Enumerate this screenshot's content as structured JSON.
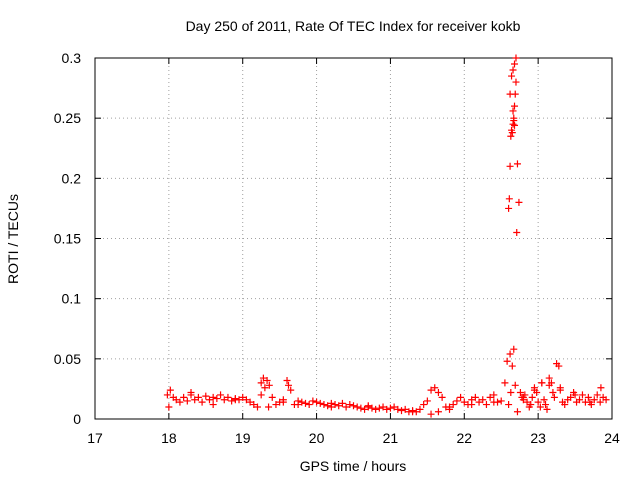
{
  "chart_data": {
    "type": "scatter",
    "title": "Day 250 of 2011, Rate Of TEC Index for receiver kokb",
    "xlabel": "GPS time / hours",
    "ylabel": "ROTI / TECUs",
    "xlim": [
      17,
      24
    ],
    "ylim": [
      0,
      0.3
    ],
    "xticks": [
      17,
      18,
      19,
      20,
      21,
      22,
      23,
      24
    ],
    "yticks": [
      0,
      0.05,
      0.1,
      0.15,
      0.2,
      0.25,
      0.3
    ],
    "xtick_labels": [
      "17",
      "18",
      "19",
      "20",
      "21",
      "22",
      "23",
      "24"
    ],
    "ytick_labels": [
      "0",
      "0.05",
      "0.1",
      "0.15",
      "0.2",
      "0.25",
      "0.3"
    ],
    "grid": true,
    "marker": "+",
    "series": [
      {
        "name": "ROTI",
        "color": "#ff0000",
        "x": [
          17.98,
          18.02,
          18.06,
          18.1,
          18.15,
          18.2,
          18.25,
          18.3,
          18.35,
          18.4,
          18.45,
          18.5,
          18.55,
          18.6,
          18.65,
          18.7,
          18.75,
          18.8,
          18.85,
          18.9,
          18.95,
          19.0,
          19.05,
          19.1,
          19.15,
          19.2,
          19.25,
          19.28,
          19.3,
          19.33,
          19.36,
          19.4,
          19.45,
          19.5,
          19.55,
          19.6,
          19.62,
          19.65,
          19.7,
          19.75,
          19.8,
          19.85,
          19.9,
          19.95,
          20.0,
          20.05,
          20.1,
          20.15,
          20.2,
          20.25,
          20.3,
          20.35,
          20.4,
          20.45,
          20.5,
          20.55,
          20.6,
          20.65,
          20.7,
          20.75,
          20.8,
          20.85,
          20.9,
          20.95,
          21.0,
          21.05,
          21.1,
          21.15,
          21.2,
          21.25,
          21.3,
          21.35,
          21.4,
          21.45,
          21.5,
          21.55,
          21.6,
          21.65,
          21.7,
          21.75,
          21.8,
          21.85,
          21.9,
          21.95,
          22.0,
          22.05,
          22.1,
          22.15,
          22.2,
          22.25,
          22.3,
          22.35,
          22.4,
          22.45,
          22.5,
          22.55,
          22.58,
          22.6,
          22.61,
          22.62,
          22.63,
          22.64,
          22.65,
          22.66,
          22.67,
          22.68,
          22.69,
          22.7,
          22.71,
          22.72,
          22.74,
          22.76,
          22.78,
          22.8,
          22.82,
          22.85,
          22.88,
          22.9,
          22.92,
          22.95,
          22.98,
          23.0,
          23.03,
          23.05,
          23.08,
          23.1,
          23.12,
          23.15,
          23.18,
          23.2,
          23.22,
          23.25,
          23.28,
          23.3,
          23.33,
          23.36,
          23.4,
          23.44,
          23.48,
          23.52,
          23.56,
          23.6,
          23.64,
          23.68,
          23.72,
          23.76,
          23.8,
          23.84,
          23.88,
          23.92,
          18.0,
          18.3,
          18.6,
          18.9,
          19.25,
          19.35,
          19.55,
          19.75,
          20.2,
          20.7,
          21.3,
          21.55,
          21.65,
          21.8,
          22.1,
          22.4,
          22.6,
          22.62,
          22.63,
          22.65,
          22.67,
          22.69,
          22.72,
          22.8,
          22.95,
          23.05,
          23.15,
          23.3,
          23.5,
          23.7,
          23.85,
          22.62,
          22.64,
          22.66,
          22.68,
          22.7,
          22.66,
          22.67,
          22.68
        ],
        "y": [
          0.02,
          0.024,
          0.018,
          0.016,
          0.014,
          0.018,
          0.015,
          0.02,
          0.016,
          0.018,
          0.014,
          0.019,
          0.016,
          0.018,
          0.017,
          0.02,
          0.016,
          0.018,
          0.015,
          0.017,
          0.016,
          0.018,
          0.016,
          0.014,
          0.012,
          0.01,
          0.03,
          0.034,
          0.026,
          0.032,
          0.028,
          0.018,
          0.012,
          0.014,
          0.016,
          0.032,
          0.028,
          0.024,
          0.012,
          0.015,
          0.014,
          0.013,
          0.012,
          0.015,
          0.014,
          0.013,
          0.012,
          0.011,
          0.01,
          0.012,
          0.011,
          0.013,
          0.01,
          0.012,
          0.011,
          0.01,
          0.009,
          0.008,
          0.01,
          0.009,
          0.008,
          0.009,
          0.01,
          0.008,
          0.009,
          0.01,
          0.008,
          0.007,
          0.008,
          0.006,
          0.007,
          0.006,
          0.008,
          0.012,
          0.015,
          0.024,
          0.026,
          0.022,
          0.018,
          0.01,
          0.008,
          0.012,
          0.015,
          0.018,
          0.014,
          0.012,
          0.016,
          0.018,
          0.014,
          0.016,
          0.012,
          0.018,
          0.02,
          0.014,
          0.015,
          0.03,
          0.048,
          0.175,
          0.183,
          0.21,
          0.235,
          0.24,
          0.238,
          0.245,
          0.25,
          0.26,
          0.27,
          0.28,
          0.155,
          0.212,
          0.18,
          0.022,
          0.018,
          0.016,
          0.02,
          0.014,
          0.01,
          0.012,
          0.018,
          0.024,
          0.022,
          0.014,
          0.01,
          0.03,
          0.016,
          0.012,
          0.008,
          0.034,
          0.03,
          0.022,
          0.018,
          0.046,
          0.044,
          0.024,
          0.014,
          0.012,
          0.016,
          0.018,
          0.022,
          0.014,
          0.016,
          0.02,
          0.014,
          0.018,
          0.012,
          0.016,
          0.02,
          0.014,
          0.018,
          0.016,
          0.01,
          0.022,
          0.012,
          0.016,
          0.02,
          0.01,
          0.014,
          0.012,
          0.013,
          0.011,
          0.006,
          0.004,
          0.006,
          0.01,
          0.012,
          0.014,
          0.012,
          0.054,
          0.022,
          0.044,
          0.058,
          0.028,
          0.006,
          0.018,
          0.026,
          0.03,
          0.028,
          0.026,
          0.02,
          0.014,
          0.026,
          0.27,
          0.285,
          0.29,
          0.295,
          0.3,
          0.256,
          0.248,
          0.244
        ]
      }
    ]
  }
}
